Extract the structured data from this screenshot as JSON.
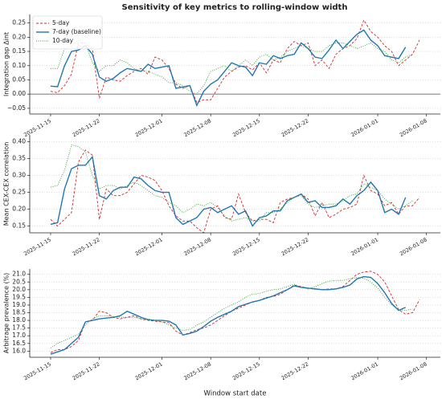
{
  "chart_data": [
    {
      "type": "line",
      "title": "Sensitivity of key metrics to rolling-window width",
      "ylabel": "Integration gap Δint",
      "x": [
        "2025-11-15",
        "2025-11-16",
        "2025-11-17",
        "2025-11-18",
        "2025-11-19",
        "2025-11-20",
        "2025-11-21",
        "2025-11-22",
        "2025-11-23",
        "2025-11-24",
        "2025-11-25",
        "2025-11-26",
        "2025-11-27",
        "2025-11-28",
        "2025-11-29",
        "2025-11-30",
        "2025-12-01",
        "2025-12-02",
        "2025-12-03",
        "2025-12-04",
        "2025-12-05",
        "2025-12-06",
        "2025-12-07",
        "2025-12-08",
        "2025-12-09",
        "2025-12-10",
        "2025-12-11",
        "2025-12-12",
        "2025-12-13",
        "2025-12-14",
        "2025-12-15",
        "2025-12-16",
        "2025-12-17",
        "2025-12-18",
        "2025-12-19",
        "2025-12-20",
        "2025-12-21",
        "2025-12-22",
        "2025-12-23",
        "2025-12-24",
        "2025-12-25",
        "2025-12-26",
        "2025-12-27",
        "2025-12-28",
        "2025-12-29",
        "2025-12-30",
        "2025-12-31",
        "2026-01-01",
        "2026-01-02",
        "2026-01-03",
        "2026-01-04",
        "2026-01-05",
        "2026-01-06",
        "2026-01-07"
      ],
      "series": [
        {
          "name": "5-day",
          "color": "#d62728",
          "dash": "dashed",
          "values": [
            0.01,
            0.005,
            0.03,
            0.07,
            0.18,
            0.18,
            0.16,
            -0.015,
            0.06,
            0.05,
            0.045,
            0.065,
            0.08,
            0.09,
            0.07,
            0.13,
            0.12,
            0.09,
            0.035,
            0.02,
            0.03,
            -0.03,
            -0.02,
            -0.02,
            0.02,
            0.06,
            0.08,
            0.095,
            0.1,
            0.085,
            0.11,
            0.075,
            0.12,
            0.11,
            0.16,
            0.185,
            0.17,
            0.18,
            0.1,
            0.12,
            0.09,
            0.14,
            0.16,
            0.17,
            0.195,
            0.26,
            0.22,
            0.2,
            0.17,
            0.15,
            0.1,
            0.12,
            0.14,
            0.19
          ]
        },
        {
          "name": "7-day (baseline)",
          "color": "#1f77b4",
          "dash": "solid",
          "values": [
            0.028,
            0.026,
            0.1,
            0.15,
            0.155,
            0.17,
            0.14,
            0.06,
            0.045,
            0.055,
            0.075,
            0.09,
            0.085,
            0.08,
            0.105,
            0.09,
            0.095,
            0.1,
            0.02,
            0.025,
            0.03,
            -0.04,
            0.01,
            0.035,
            0.05,
            0.08,
            0.11,
            0.1,
            0.095,
            0.065,
            0.11,
            0.105,
            0.135,
            0.125,
            0.135,
            0.14,
            0.18,
            0.16,
            0.13,
            0.125,
            0.155,
            0.19,
            0.16,
            0.185,
            0.21,
            0.225,
            0.19,
            0.17,
            0.135,
            0.13,
            0.125,
            0.165,
            null,
            null
          ]
        },
        {
          "name": "10-day",
          "color": "#2ca02c",
          "dash": "dotted",
          "values": [
            0.09,
            0.09,
            0.16,
            0.17,
            0.19,
            0.18,
            0.11,
            0.08,
            0.1,
            0.1,
            0.12,
            0.11,
            0.09,
            0.08,
            0.08,
            0.07,
            0.06,
            0.04,
            0.04,
            0.03,
            0.01,
            0.0,
            0.03,
            0.08,
            0.09,
            0.1,
            0.08,
            0.1,
            0.12,
            0.1,
            0.13,
            0.14,
            0.12,
            0.13,
            0.15,
            0.16,
            0.17,
            0.16,
            0.15,
            0.15,
            0.17,
            0.18,
            0.18,
            0.17,
            0.16,
            0.17,
            0.18,
            0.16,
            0.15,
            0.12,
            0.11,
            0.13,
            0.14,
            null
          ]
        }
      ],
      "xlim": [
        "2025-11-12",
        "2026-01-10"
      ],
      "xticks": [
        "2025-11-15",
        "2025-11-22",
        "2025-12-01",
        "2025-12-08",
        "2025-12-15",
        "2025-12-22",
        "2026-01-01",
        "2026-01-08"
      ],
      "ylim": [
        -0.07,
        0.28
      ],
      "yticks": [
        {
          "value": -0.05,
          "label": "−0.05"
        },
        {
          "value": 0,
          "label": "0.00"
        },
        0.05,
        {
          "value": 0.1,
          "label": "0.10"
        },
        0.15,
        {
          "value": 0.2,
          "label": "0.20"
        },
        0.25
      ],
      "reference_line": 0,
      "grid": true,
      "legend": "upper left"
    },
    {
      "type": "line",
      "ylabel": "Mean CEX-CEX correlation",
      "x": [
        "2025-11-15",
        "2025-11-16",
        "2025-11-17",
        "2025-11-18",
        "2025-11-19",
        "2025-11-20",
        "2025-11-21",
        "2025-11-22",
        "2025-11-23",
        "2025-11-24",
        "2025-11-25",
        "2025-11-26",
        "2025-11-27",
        "2025-11-28",
        "2025-11-29",
        "2025-11-30",
        "2025-12-01",
        "2025-12-02",
        "2025-12-03",
        "2025-12-04",
        "2025-12-05",
        "2025-12-06",
        "2025-12-07",
        "2025-12-08",
        "2025-12-09",
        "2025-12-10",
        "2025-12-11",
        "2025-12-12",
        "2025-12-13",
        "2025-12-14",
        "2025-12-15",
        "2025-12-16",
        "2025-12-17",
        "2025-12-18",
        "2025-12-19",
        "2025-12-20",
        "2025-12-21",
        "2025-12-22",
        "2025-12-23",
        "2025-12-24",
        "2025-12-25",
        "2025-12-26",
        "2025-12-27",
        "2025-12-28",
        "2025-12-29",
        "2025-12-30",
        "2025-12-31",
        "2026-01-01",
        "2026-01-02",
        "2026-01-03",
        "2026-01-04",
        "2026-01-05",
        "2026-01-06",
        "2026-01-07"
      ],
      "series": [
        {
          "name": "5-day",
          "color": "#d62728",
          "dash": "dashed",
          "values": [
            0.17,
            0.15,
            0.17,
            0.19,
            0.34,
            0.375,
            0.36,
            0.17,
            0.26,
            0.24,
            0.24,
            0.25,
            0.275,
            0.3,
            0.295,
            0.285,
            0.255,
            0.21,
            0.18,
            0.165,
            0.165,
            0.145,
            0.13,
            0.2,
            0.21,
            0.175,
            0.17,
            0.245,
            0.19,
            0.165,
            0.17,
            0.17,
            0.16,
            0.22,
            0.23,
            0.235,
            0.245,
            0.23,
            0.18,
            0.22,
            0.175,
            0.185,
            0.2,
            0.205,
            0.215,
            0.3,
            0.255,
            0.245,
            0.21,
            0.22,
            0.185,
            0.21,
            0.21,
            0.235
          ]
        },
        {
          "name": "7-day (baseline)",
          "color": "#1f77b4",
          "dash": "solid",
          "values": [
            0.155,
            0.16,
            0.26,
            0.32,
            0.33,
            0.33,
            0.355,
            0.24,
            0.23,
            0.255,
            0.265,
            0.265,
            0.295,
            0.29,
            0.27,
            0.255,
            0.25,
            0.25,
            0.175,
            0.155,
            0.165,
            0.175,
            0.2,
            0.205,
            0.19,
            0.2,
            0.21,
            0.185,
            0.195,
            0.15,
            0.175,
            0.18,
            0.195,
            0.195,
            0.225,
            0.235,
            0.245,
            0.22,
            0.225,
            0.205,
            0.205,
            0.21,
            0.23,
            0.215,
            0.24,
            0.255,
            0.28,
            0.255,
            0.19,
            0.2,
            0.185,
            0.235,
            null,
            null
          ]
        },
        {
          "name": "10-day",
          "color": "#2ca02c",
          "dash": "dotted",
          "values": [
            0.265,
            0.27,
            0.315,
            0.39,
            0.385,
            0.37,
            0.3,
            0.26,
            0.27,
            0.27,
            0.26,
            0.27,
            0.28,
            0.27,
            0.255,
            0.24,
            0.235,
            0.22,
            0.21,
            0.19,
            0.2,
            0.215,
            0.21,
            0.22,
            0.205,
            0.18,
            0.165,
            0.17,
            0.175,
            0.165,
            0.165,
            0.19,
            0.19,
            0.2,
            0.22,
            0.235,
            0.24,
            0.215,
            0.205,
            0.21,
            0.215,
            0.215,
            0.225,
            0.24,
            0.245,
            0.275,
            0.265,
            0.255,
            0.23,
            0.215,
            0.2,
            0.21,
            0.225,
            null
          ]
        }
      ],
      "xlim": [
        "2025-11-12",
        "2026-01-10"
      ],
      "xticks": [
        "2025-11-15",
        "2025-11-22",
        "2025-12-01",
        "2025-12-08",
        "2025-12-15",
        "2025-12-22",
        "2026-01-01",
        "2026-01-08"
      ],
      "ylim": [
        0.13,
        0.42
      ],
      "yticks": [
        0.15,
        {
          "value": 0.2,
          "label": "0.20"
        },
        0.25,
        {
          "value": 0.3,
          "label": "0.30"
        },
        0.35,
        {
          "value": 0.4,
          "label": "0.40"
        }
      ],
      "grid": true
    },
    {
      "type": "line",
      "ylabel": "Arbitrage prevalence (%)",
      "xlabel": "Window start date",
      "x": [
        "2025-11-15",
        "2025-11-16",
        "2025-11-17",
        "2025-11-18",
        "2025-11-19",
        "2025-11-20",
        "2025-11-21",
        "2025-11-22",
        "2025-11-23",
        "2025-11-24",
        "2025-11-25",
        "2025-11-26",
        "2025-11-27",
        "2025-11-28",
        "2025-11-29",
        "2025-11-30",
        "2025-12-01",
        "2025-12-02",
        "2025-12-03",
        "2025-12-04",
        "2025-12-05",
        "2025-12-06",
        "2025-12-07",
        "2025-12-08",
        "2025-12-09",
        "2025-12-10",
        "2025-12-11",
        "2025-12-12",
        "2025-12-13",
        "2025-12-14",
        "2025-12-15",
        "2025-12-16",
        "2025-12-17",
        "2025-12-18",
        "2025-12-19",
        "2025-12-20",
        "2025-12-21",
        "2025-12-22",
        "2025-12-23",
        "2025-12-24",
        "2025-12-25",
        "2025-12-26",
        "2025-12-27",
        "2025-12-28",
        "2025-12-29",
        "2025-12-30",
        "2025-12-31",
        "2026-01-01",
        "2026-01-02",
        "2026-01-03",
        "2026-01-04",
        "2026-01-05",
        "2026-01-06",
        "2026-01-07"
      ],
      "series": [
        {
          "name": "5-day",
          "color": "#d62728",
          "dash": "dashed",
          "values": [
            15.9,
            16.1,
            16.1,
            16.3,
            16.7,
            17.9,
            18.0,
            18.6,
            18.5,
            18.2,
            18.1,
            18.2,
            18.3,
            18.1,
            18.0,
            17.95,
            17.9,
            17.85,
            17.3,
            17.05,
            17.2,
            17.4,
            17.5,
            17.7,
            18.0,
            18.3,
            18.6,
            18.8,
            19.0,
            19.2,
            19.3,
            19.5,
            19.55,
            19.7,
            20.0,
            20.3,
            20.2,
            20.1,
            20.05,
            20.0,
            20.05,
            20.05,
            20.2,
            20.6,
            21.0,
            21.15,
            21.2,
            21.0,
            20.5,
            19.6,
            18.7,
            18.4,
            18.5,
            19.35
          ]
        },
        {
          "name": "7-day (baseline)",
          "color": "#1f77b4",
          "dash": "solid",
          "values": [
            15.8,
            15.95,
            16.1,
            16.5,
            16.9,
            17.9,
            18.0,
            18.1,
            18.15,
            18.2,
            18.3,
            18.6,
            18.4,
            18.2,
            18.05,
            18.0,
            18.0,
            17.95,
            17.7,
            17.05,
            17.15,
            17.3,
            17.6,
            17.95,
            18.2,
            18.4,
            18.6,
            18.9,
            19.05,
            19.2,
            19.3,
            19.45,
            19.6,
            19.8,
            20.0,
            20.25,
            20.15,
            20.1,
            20.05,
            20.0,
            20.0,
            20.05,
            20.15,
            20.3,
            20.7,
            20.85,
            20.8,
            20.4,
            19.8,
            19.1,
            18.65,
            18.85,
            null,
            null
          ]
        },
        {
          "name": "10-day",
          "color": "#2ca02c",
          "dash": "dotted",
          "values": [
            16.2,
            16.5,
            16.7,
            16.9,
            17.1,
            17.7,
            18.1,
            18.3,
            18.3,
            18.25,
            18.2,
            18.2,
            18.2,
            18.1,
            18.05,
            18.0,
            17.9,
            17.7,
            17.5,
            17.35,
            17.4,
            17.7,
            17.9,
            18.2,
            18.5,
            18.8,
            19.0,
            19.2,
            19.5,
            19.7,
            19.75,
            19.9,
            20.0,
            20.05,
            20.2,
            20.35,
            20.15,
            20.05,
            20.2,
            20.4,
            20.55,
            20.6,
            20.6,
            20.7,
            20.8,
            20.75,
            20.5,
            20.1,
            19.5,
            19.0,
            18.7,
            18.65,
            18.75,
            null
          ]
        }
      ],
      "xlim": [
        "2025-11-12",
        "2026-01-10"
      ],
      "xticks": [
        "2025-11-15",
        "2025-11-22",
        "2025-12-01",
        "2025-12-08",
        "2025-12-15",
        "2025-12-22",
        "2026-01-01",
        "2026-01-08"
      ],
      "ylim": [
        15.6,
        21.35
      ],
      "yticks": [
        {
          "value": 16,
          "label": "16.0"
        },
        16.5,
        {
          "value": 17,
          "label": "17.0"
        },
        17.5,
        {
          "value": 18,
          "label": "18.0"
        },
        18.5,
        {
          "value": 19,
          "label": "19.0"
        },
        19.5,
        {
          "value": 20,
          "label": "20.0"
        },
        20.5,
        {
          "value": 21,
          "label": "21.0"
        }
      ],
      "grid": true
    }
  ]
}
